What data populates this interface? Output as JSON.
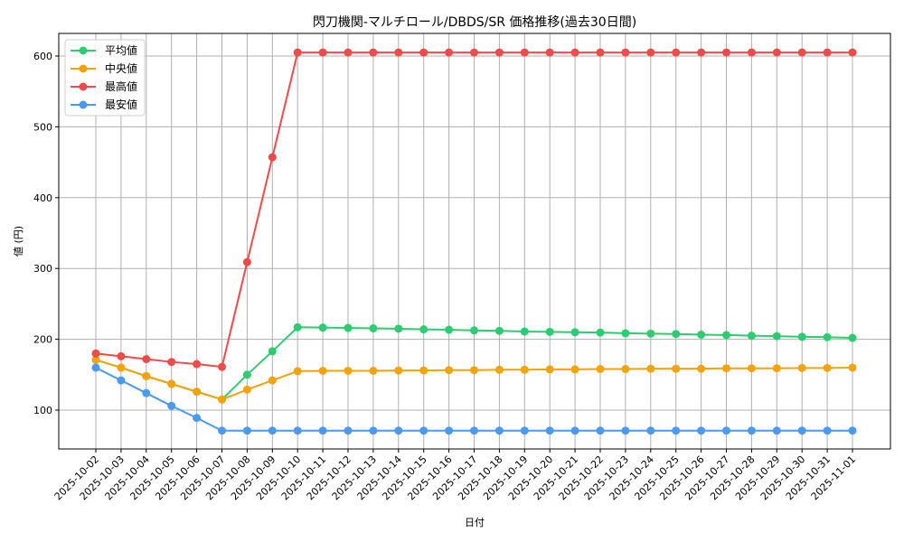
{
  "chart_data": {
    "type": "line",
    "title": "閃刀機関-マルチロール/DBDS/SR 価格推移(過去30日間)",
    "xlabel": "日付",
    "ylabel": "値 (円)",
    "ylim": [
      45,
      632
    ],
    "yticks": [
      100,
      200,
      300,
      400,
      500,
      600
    ],
    "grid": true,
    "legend_position": "upper left",
    "x": [
      "2025-10-02",
      "2025-10-03",
      "2025-10-04",
      "2025-10-05",
      "2025-10-06",
      "2025-10-07",
      "2025-10-08",
      "2025-10-09",
      "2025-10-10",
      "2025-10-11",
      "2025-10-12",
      "2025-10-13",
      "2025-10-14",
      "2025-10-15",
      "2025-10-16",
      "2025-10-17",
      "2025-10-18",
      "2025-10-19",
      "2025-10-20",
      "2025-10-21",
      "2025-10-22",
      "2025-10-23",
      "2025-10-24",
      "2025-10-25",
      "2025-10-26",
      "2025-10-27",
      "2025-10-28",
      "2025-10-29",
      "2025-10-30",
      "2025-10-31",
      "2025-11-01"
    ],
    "series": [
      {
        "name": "平均値",
        "color": "#2ecc71",
        "values": [
          171,
          160,
          148,
          137,
          126,
          115,
          150,
          183,
          217,
          216.5,
          216,
          215.5,
          215,
          214,
          213.5,
          212.5,
          212,
          211,
          210.5,
          210,
          209.5,
          208.5,
          208,
          207.5,
          206.5,
          206,
          205,
          204.5,
          203.5,
          203,
          202
        ]
      },
      {
        "name": "中央値",
        "color": "#f5a30a",
        "values": [
          171,
          160,
          148,
          137,
          126,
          115,
          129,
          142,
          155,
          155.5,
          155.5,
          155.5,
          156,
          156,
          156.5,
          156.5,
          157,
          157,
          157.5,
          157.5,
          158,
          158,
          158.5,
          158.5,
          158.5,
          159,
          159,
          159,
          159.5,
          159.5,
          160
        ]
      },
      {
        "name": "最高値",
        "color": "#f04a4a",
        "values": [
          180,
          176,
          172,
          168,
          165,
          161,
          309,
          457,
          605,
          605,
          605,
          605,
          605,
          605,
          605,
          605,
          605,
          605,
          605,
          605,
          605,
          605,
          605,
          605,
          605,
          605,
          605,
          605,
          605,
          605,
          605
        ]
      },
      {
        "name": "最安値",
        "color": "#4a9af0",
        "values": [
          160,
          142,
          124,
          106,
          89,
          71,
          71,
          71,
          71,
          71,
          71,
          71,
          71,
          71,
          71,
          71,
          71,
          71,
          71,
          71,
          71,
          71,
          71,
          71,
          71,
          71,
          71,
          71,
          71,
          71,
          71
        ]
      }
    ]
  }
}
